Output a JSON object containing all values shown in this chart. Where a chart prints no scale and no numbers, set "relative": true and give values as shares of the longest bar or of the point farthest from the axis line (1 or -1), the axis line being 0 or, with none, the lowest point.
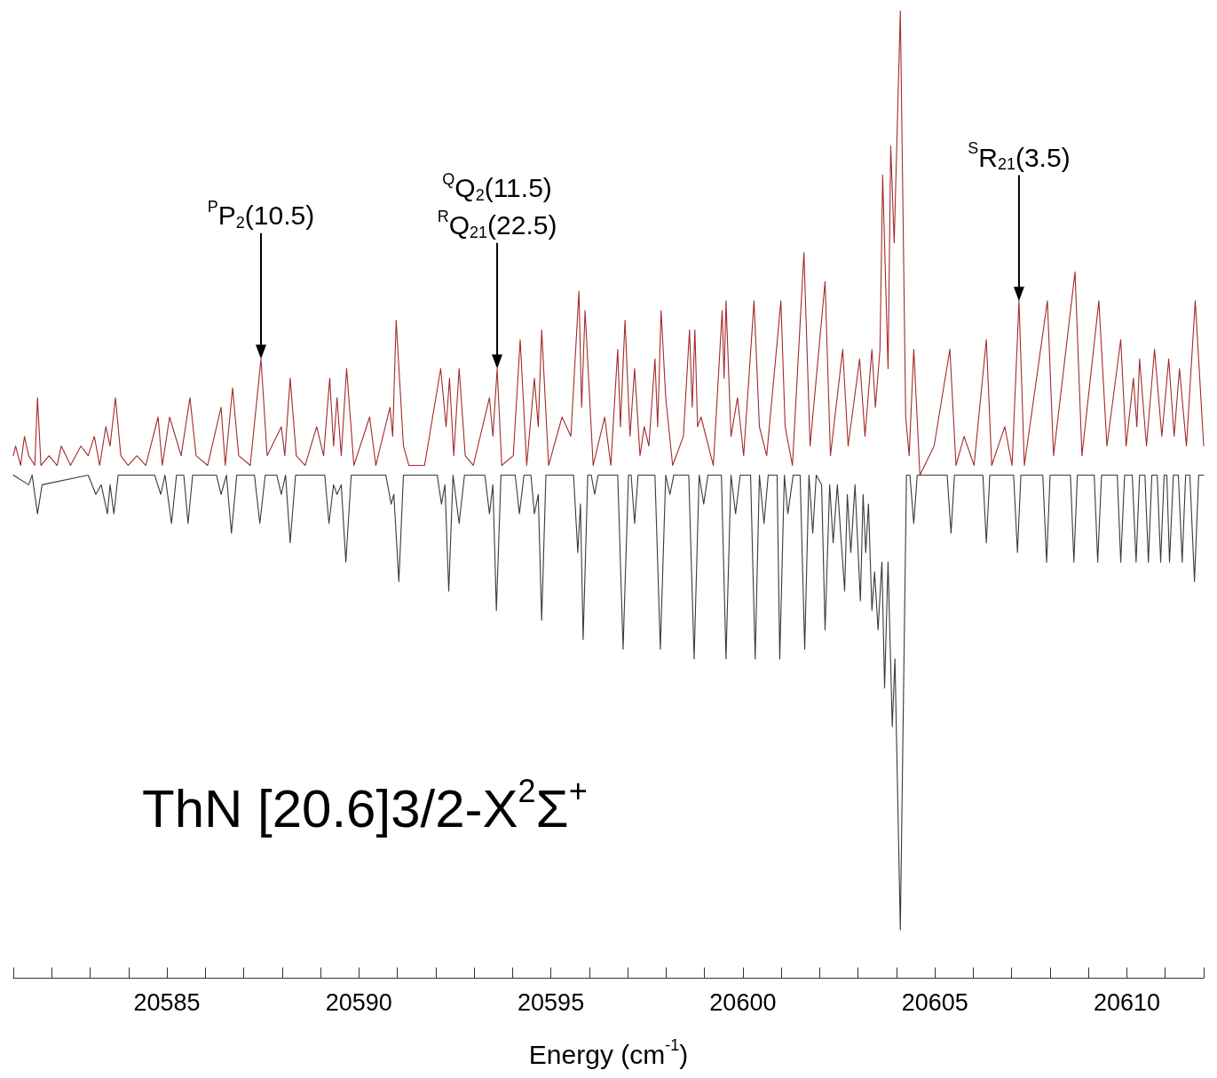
{
  "chart_data": {
    "type": "line",
    "relative": true,
    "xlabel": "Energy (cm$^{-1}$)",
    "xlim": [
      20581,
      20612
    ],
    "xticks": [
      {
        "value": 20582,
        "label": null
      },
      {
        "value": 20583,
        "label": null
      },
      {
        "value": 20584,
        "label": null
      },
      20585,
      {
        "value": 20586,
        "label": null
      },
      {
        "value": 20587,
        "label": null
      },
      {
        "value": 20588,
        "label": null
      },
      {
        "value": 20589,
        "label": null
      },
      20590,
      {
        "value": 20591,
        "label": null
      },
      {
        "value": 20592,
        "label": null
      },
      {
        "value": 20593,
        "label": null
      },
      {
        "value": 20594,
        "label": null
      },
      20595,
      {
        "value": 20596,
        "label": null
      },
      {
        "value": 20597,
        "label": null
      },
      {
        "value": 20598,
        "label": null
      },
      {
        "value": 20599,
        "label": null
      },
      20600,
      {
        "value": 20601,
        "label": null
      },
      {
        "value": 20602,
        "label": null
      },
      {
        "value": 20603,
        "label": null
      },
      {
        "value": 20604,
        "label": null
      },
      20605,
      {
        "value": 20606,
        "label": null
      },
      {
        "value": 20607,
        "label": null
      },
      {
        "value": 20608,
        "label": null
      },
      {
        "value": 20609,
        "label": null
      },
      20610,
      {
        "value": 20611,
        "label": null
      },
      {
        "value": 20612,
        "label": null
      }
    ],
    "grid": false,
    "marker": "none",
    "line_style": "solid",
    "series": [
      {
        "color": "#a52a2a",
        "x": [
          20581.0,
          20581.06,
          20581.19,
          20581.29,
          20581.4,
          20581.56,
          20581.63,
          20581.72,
          20581.93,
          20582.14,
          20582.25,
          20582.49,
          20582.76,
          20582.95,
          20583.11,
          20583.25,
          20583.41,
          20583.52,
          20583.66,
          20583.8,
          20583.99,
          20584.22,
          20584.45,
          20584.77,
          20584.88,
          20585.07,
          20585.37,
          20585.6,
          20585.76,
          20586.06,
          20586.41,
          20586.52,
          20586.71,
          20586.87,
          20587.17,
          20587.45,
          20587.61,
          20587.98,
          20588.07,
          20588.21,
          20588.37,
          20588.6,
          20588.9,
          20589.08,
          20589.24,
          20589.34,
          20589.43,
          20589.54,
          20589.68,
          20589.87,
          20590.28,
          20590.44,
          20590.81,
          20590.88,
          20590.97,
          20591.16,
          20591.3,
          20591.71,
          20592.13,
          20592.27,
          20592.36,
          20592.47,
          20592.61,
          20592.77,
          20592.98,
          20593.4,
          20593.49,
          20593.6,
          20593.72,
          20594.02,
          20594.2,
          20594.37,
          20594.57,
          20594.67,
          20594.76,
          20594.94,
          20595.29,
          20595.52,
          20595.73,
          20595.8,
          20595.89,
          20596.1,
          20596.4,
          20596.56,
          20596.74,
          20596.81,
          20596.93,
          20597.06,
          20597.18,
          20597.32,
          20597.43,
          20597.55,
          20597.71,
          20597.78,
          20597.87,
          20597.99,
          20598.17,
          20598.45,
          20598.61,
          20598.68,
          20598.75,
          20598.82,
          20598.91,
          20599.23,
          20599.46,
          20599.51,
          20599.56,
          20599.69,
          20599.86,
          20600.02,
          20600.29,
          20600.43,
          20600.62,
          20600.99,
          20601.1,
          20601.29,
          20601.59,
          20601.75,
          20602.14,
          20602.28,
          20602.6,
          20602.74,
          20603.04,
          20603.18,
          20603.36,
          20603.45,
          20603.57,
          20603.64,
          20603.78,
          20603.85,
          20603.94,
          20604.1,
          20604.24,
          20604.33,
          20604.45,
          20604.61,
          20604.98,
          20605.39,
          20605.55,
          20605.76,
          20606.02,
          20606.34,
          20606.48,
          20606.82,
          20607.01,
          20607.19,
          20607.33,
          20607.93,
          20608.09,
          20608.65,
          20608.83,
          20609.27,
          20609.48,
          20609.84,
          20609.98,
          20610.17,
          20610.26,
          20610.33,
          20610.51,
          20610.72,
          20610.91,
          20611.09,
          20611.23,
          20611.37,
          20611.55,
          20611.78,
          20612.0
        ],
        "values": [
          0.54,
          0.55,
          0.53,
          0.56,
          0.54,
          0.53,
          0.6,
          0.53,
          0.54,
          0.53,
          0.55,
          0.53,
          0.55,
          0.54,
          0.56,
          0.53,
          0.57,
          0.55,
          0.6,
          0.54,
          0.53,
          0.54,
          0.53,
          0.58,
          0.53,
          0.58,
          0.54,
          0.6,
          0.54,
          0.53,
          0.59,
          0.53,
          0.61,
          0.54,
          0.53,
          0.64,
          0.54,
          0.57,
          0.54,
          0.62,
          0.54,
          0.53,
          0.57,
          0.54,
          0.62,
          0.55,
          0.6,
          0.54,
          0.63,
          0.53,
          0.58,
          0.53,
          0.59,
          0.56,
          0.68,
          0.55,
          0.53,
          0.53,
          0.63,
          0.57,
          0.62,
          0.54,
          0.63,
          0.54,
          0.53,
          0.6,
          0.56,
          0.63,
          0.53,
          0.54,
          0.66,
          0.53,
          0.62,
          0.57,
          0.67,
          0.53,
          0.58,
          0.56,
          0.71,
          0.59,
          0.69,
          0.53,
          0.58,
          0.53,
          0.65,
          0.57,
          0.68,
          0.56,
          0.63,
          0.54,
          0.57,
          0.55,
          0.64,
          0.57,
          0.69,
          0.6,
          0.53,
          0.56,
          0.67,
          0.59,
          0.67,
          0.57,
          0.58,
          0.53,
          0.69,
          0.62,
          0.7,
          0.56,
          0.6,
          0.54,
          0.7,
          0.57,
          0.54,
          0.7,
          0.57,
          0.53,
          0.75,
          0.55,
          0.72,
          0.54,
          0.65,
          0.55,
          0.64,
          0.56,
          0.65,
          0.59,
          0.65,
          0.83,
          0.63,
          0.86,
          0.76,
          1.0,
          0.58,
          0.54,
          0.65,
          0.52,
          0.55,
          0.65,
          0.53,
          0.56,
          0.53,
          0.66,
          0.53,
          0.57,
          0.53,
          0.7,
          0.53,
          0.7,
          0.54,
          0.73,
          0.54,
          0.7,
          0.55,
          0.66,
          0.55,
          0.62,
          0.57,
          0.64,
          0.55,
          0.65,
          0.56,
          0.64,
          0.56,
          0.63,
          0.55,
          0.7,
          0.55
        ]
      },
      {
        "color": "#3a3a3a",
        "x": [
          20581.0,
          20581.4,
          20581.49,
          20581.63,
          20581.75,
          20582.95,
          20583.15,
          20583.29,
          20583.45,
          20583.52,
          20583.62,
          20583.73,
          20584.68,
          20584.84,
          20584.95,
          20585.12,
          20585.25,
          20585.44,
          20585.55,
          20585.67,
          20586.29,
          20586.41,
          20586.55,
          20586.68,
          20586.82,
          20587.28,
          20587.42,
          20587.56,
          20587.86,
          20587.98,
          20588.09,
          20588.21,
          20588.35,
          20589.11,
          20589.22,
          20589.34,
          20589.43,
          20589.54,
          20589.66,
          20589.8,
          20590.7,
          20590.84,
          20590.91,
          20591.04,
          20591.16,
          20592.04,
          20592.15,
          20592.24,
          20592.34,
          20592.45,
          20592.61,
          20592.75,
          20593.28,
          20593.4,
          20593.49,
          20593.58,
          20593.7,
          20594.07,
          20594.18,
          20594.3,
          20594.48,
          20594.57,
          20594.67,
          20594.76,
          20594.87,
          20595.59,
          20595.7,
          20595.77,
          20595.84,
          20595.96,
          20596.05,
          20596.14,
          20596.23,
          20596.74,
          20596.88,
          20597.02,
          20597.09,
          20597.18,
          20597.27,
          20597.71,
          20597.85,
          20597.99,
          20598.1,
          20598.2,
          20598.59,
          20598.73,
          20598.86,
          20598.98,
          20599.09,
          20599.44,
          20599.56,
          20599.69,
          20599.81,
          20599.93,
          20600.2,
          20600.32,
          20600.43,
          20600.55,
          20600.66,
          20600.89,
          20600.96,
          20601.08,
          20601.17,
          20601.31,
          20601.49,
          20601.61,
          20601.72,
          20601.82,
          20601.91,
          20602.05,
          20602.14,
          20602.26,
          20602.35,
          20602.46,
          20602.65,
          20602.72,
          20602.81,
          20602.92,
          20603.06,
          20603.13,
          20603.2,
          20603.27,
          20603.36,
          20603.43,
          20603.52,
          20603.62,
          20603.69,
          20603.78,
          20603.89,
          20603.96,
          20604.1,
          20604.26,
          20604.35,
          20604.45,
          20604.54,
          20605.32,
          20605.42,
          20605.51,
          20606.25,
          20606.34,
          20606.43,
          20607.05,
          20607.15,
          20607.24,
          20607.81,
          20607.91,
          20608.0,
          20608.53,
          20608.62,
          20608.71,
          20609.15,
          20609.24,
          20609.34,
          20609.75,
          20609.84,
          20609.94,
          20610.14,
          20610.24,
          20610.33,
          20610.47,
          20610.56,
          20610.65,
          20610.79,
          20610.88,
          20610.97,
          20611.04,
          20611.11,
          20611.21,
          20611.34,
          20611.44,
          20611.53,
          20611.64,
          20611.76,
          20611.87,
          20612.0
        ],
        "values": [
          0.52,
          0.51,
          0.52,
          0.48,
          0.51,
          0.52,
          0.5,
          0.51,
          0.48,
          0.51,
          0.48,
          0.52,
          0.52,
          0.5,
          0.52,
          0.47,
          0.52,
          0.52,
          0.47,
          0.52,
          0.52,
          0.5,
          0.52,
          0.46,
          0.52,
          0.52,
          0.47,
          0.52,
          0.52,
          0.5,
          0.52,
          0.45,
          0.52,
          0.52,
          0.47,
          0.51,
          0.5,
          0.51,
          0.43,
          0.52,
          0.52,
          0.49,
          0.5,
          0.41,
          0.52,
          0.52,
          0.49,
          0.51,
          0.4,
          0.52,
          0.47,
          0.52,
          0.52,
          0.48,
          0.51,
          0.38,
          0.52,
          0.52,
          0.48,
          0.52,
          0.52,
          0.48,
          0.5,
          0.37,
          0.52,
          0.52,
          0.44,
          0.49,
          0.35,
          0.52,
          0.52,
          0.5,
          0.52,
          0.52,
          0.34,
          0.52,
          0.52,
          0.47,
          0.52,
          0.52,
          0.34,
          0.52,
          0.5,
          0.52,
          0.52,
          0.33,
          0.52,
          0.49,
          0.52,
          0.52,
          0.33,
          0.52,
          0.48,
          0.52,
          0.52,
          0.33,
          0.52,
          0.47,
          0.52,
          0.52,
          0.33,
          0.52,
          0.48,
          0.52,
          0.52,
          0.34,
          0.52,
          0.46,
          0.52,
          0.51,
          0.36,
          0.51,
          0.45,
          0.51,
          0.4,
          0.5,
          0.44,
          0.51,
          0.39,
          0.5,
          0.44,
          0.49,
          0.38,
          0.42,
          0.36,
          0.43,
          0.3,
          0.43,
          0.26,
          0.33,
          0.05,
          0.52,
          0.52,
          0.47,
          0.52,
          0.52,
          0.46,
          0.52,
          0.52,
          0.45,
          0.52,
          0.52,
          0.44,
          0.52,
          0.52,
          0.43,
          0.52,
          0.52,
          0.43,
          0.52,
          0.52,
          0.43,
          0.52,
          0.52,
          0.43,
          0.52,
          0.52,
          0.43,
          0.52,
          0.52,
          0.43,
          0.52,
          0.52,
          0.43,
          0.52,
          0.52,
          0.43,
          0.52,
          0.52,
          0.43,
          0.52,
          0.52,
          0.41,
          0.52,
          0.52
        ]
      }
    ],
    "annotations": [
      {
        "text": "$^{P}$P$_{2}$(10.5)",
        "x": 20587.45
      },
      "$^{Q}$Q$_{2}$(11.5)",
      {
        "text": "$^{R}$Q$_{21}$(22.5)",
        "x": 20593.6
      },
      {
        "text": "$^{S}$R$_{21}$(3.5)",
        "x": 20607.19
      },
      "ThN [20.6]3/2-X$^{2}$Σ$^{+}$"
    ]
  }
}
